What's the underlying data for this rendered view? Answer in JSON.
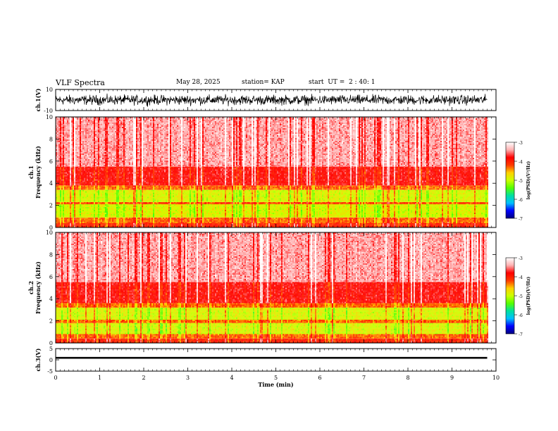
{
  "header": {
    "title": "VLF Spectra",
    "date": "May 28, 2025",
    "station": "station= KAP",
    "start": "start  UT =  2 : 40: 1"
  },
  "chart_data": [
    {
      "type": "line",
      "panel": "ch1-waveform",
      "ylabel": "ch.1(V)",
      "ylim": [
        -10,
        10
      ],
      "y_ticks": [
        "10",
        "-10"
      ],
      "xlim": [
        0,
        10
      ],
      "data_extent_x": [
        0,
        9.8
      ],
      "series": [
        {
          "style": "dense noisy oscillation",
          "typical_range": [
            -9,
            9
          ]
        }
      ]
    },
    {
      "type": "heatmap",
      "panel": "ch1-spectrogram",
      "ylabel": "ch.1\nFrequency (kHz)",
      "ylim": [
        0,
        10
      ],
      "y_ticks": [
        "0",
        "2",
        "4",
        "6",
        "8",
        "10"
      ],
      "xlim": [
        0,
        10
      ],
      "data_extent_x": [
        0,
        9.8
      ],
      "bands": [
        {
          "f_range": [
            0,
            0.4
          ],
          "level": -4.0
        },
        {
          "f_range": [
            0.4,
            0.9
          ],
          "level": -4.3
        },
        {
          "f_range": [
            0.9,
            2.1
          ],
          "level": -4.9
        },
        {
          "f_range": [
            2.1,
            2.3
          ],
          "level": -4.2
        },
        {
          "f_range": [
            2.3,
            3.4
          ],
          "level": -4.9
        },
        {
          "f_range": [
            3.4,
            3.8
          ],
          "level": -4.3
        },
        {
          "f_range": [
            3.8,
            5.5
          ],
          "level": -3.8
        },
        {
          "f_range": [
            5.5,
            10.0
          ],
          "level": -3.4
        }
      ]
    },
    {
      "type": "heatmap",
      "panel": "ch2-spectrogram",
      "ylabel": "ch.2\nFrequency (kHz)",
      "ylim": [
        0,
        10
      ],
      "y_ticks": [
        "0",
        "2",
        "4",
        "6",
        "8",
        "10"
      ],
      "xlim": [
        0,
        10
      ],
      "data_extent_x": [
        0,
        9.8
      ],
      "bands": [
        {
          "f_range": [
            0,
            0.4
          ],
          "level": -4.0
        },
        {
          "f_range": [
            0.4,
            0.8
          ],
          "level": -4.3
        },
        {
          "f_range": [
            0.8,
            1.8
          ],
          "level": -4.9
        },
        {
          "f_range": [
            1.8,
            2.1
          ],
          "level": -4.3
        },
        {
          "f_range": [
            2.1,
            3.2
          ],
          "level": -4.9
        },
        {
          "f_range": [
            3.2,
            3.6
          ],
          "level": -4.3
        },
        {
          "f_range": [
            3.6,
            5.5
          ],
          "level": -3.8
        },
        {
          "f_range": [
            5.5,
            10.0
          ],
          "level": -3.4
        }
      ]
    },
    {
      "type": "line",
      "panel": "ch3-waveform",
      "ylabel": "ch.3(V)",
      "ylim": [
        -5,
        5
      ],
      "y_ticks": [
        "5",
        "0",
        "-5"
      ],
      "xlim": [
        0,
        10
      ],
      "data_extent_x": [
        0,
        9.8
      ],
      "series": [
        {
          "style": "thick band",
          "center": 0.9,
          "range": [
            0.5,
            1.3
          ]
        }
      ]
    }
  ],
  "x_axis": {
    "xlabel": "Time (min)",
    "ticks": [
      "0",
      "1",
      "2",
      "3",
      "4",
      "5",
      "6",
      "7",
      "8",
      "9",
      "10"
    ]
  },
  "colorbar": {
    "label": "log(PSD)(V²/Hz)",
    "range": [
      -7,
      -3
    ],
    "ticks": [
      "-3",
      "-4",
      "-5",
      "-6",
      "-7"
    ],
    "colors": [
      "#00007f",
      "#0000ff",
      "#00bfff",
      "#00e0a0",
      "#55ff00",
      "#ccff00",
      "#ffd000",
      "#ff3a00",
      "#ff0000",
      "#ffb0b0",
      "#ffffff"
    ]
  }
}
